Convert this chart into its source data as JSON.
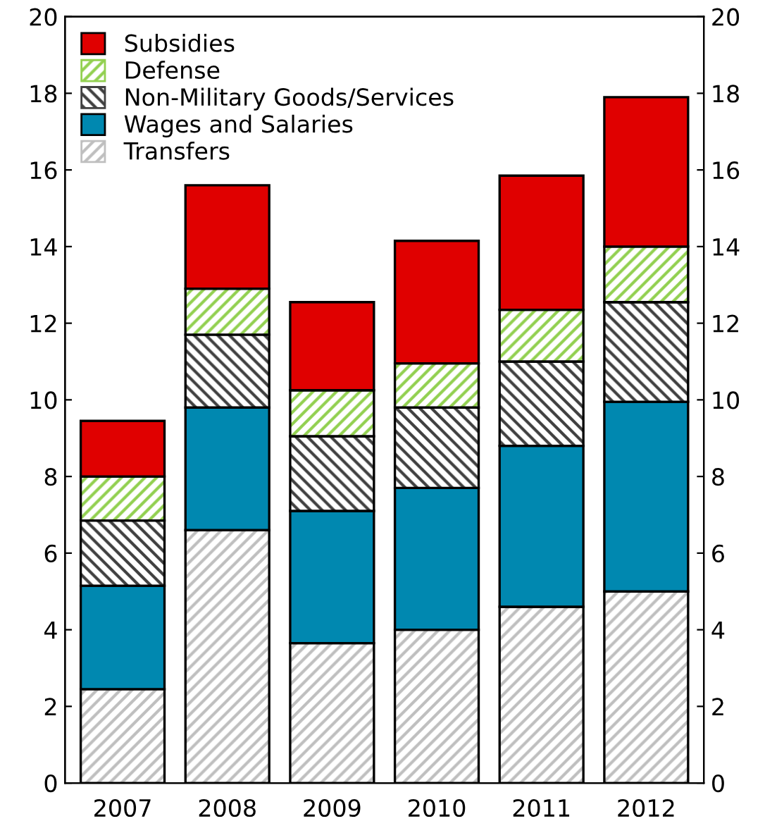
{
  "chart_data": {
    "type": "bar",
    "stacked": true,
    "categories": [
      "2007",
      "2008",
      "2009",
      "2010",
      "2011",
      "2012"
    ],
    "series": [
      {
        "name": "Transfers",
        "color": "#bfbfbf",
        "values": [
          2.45,
          6.6,
          3.65,
          4.0,
          4.6,
          5.0
        ]
      },
      {
        "name": "Wages and Salaries",
        "color": "#0088b0",
        "values": [
          2.7,
          3.2,
          3.45,
          3.7,
          4.2,
          4.95
        ]
      },
      {
        "name": "Non-Military Goods/Services",
        "color": "#404040",
        "values": [
          1.7,
          1.9,
          1.95,
          2.1,
          2.2,
          2.6
        ]
      },
      {
        "name": "Defense",
        "color": "#92d050",
        "values": [
          1.15,
          1.2,
          1.2,
          1.15,
          1.35,
          1.45
        ]
      },
      {
        "name": "Subsidies",
        "color": "#e00000",
        "values": [
          1.45,
          2.7,
          2.3,
          3.2,
          3.5,
          3.9
        ]
      }
    ],
    "ylim": [
      0,
      20
    ],
    "yticks": [
      0,
      2,
      4,
      6,
      8,
      10,
      12,
      14,
      16,
      18,
      20
    ],
    "y2lim": [
      0,
      20
    ],
    "y2ticks": [
      0,
      2,
      4,
      6,
      8,
      10,
      12,
      14,
      16,
      18,
      20
    ],
    "grid": false,
    "legend": "top left"
  }
}
